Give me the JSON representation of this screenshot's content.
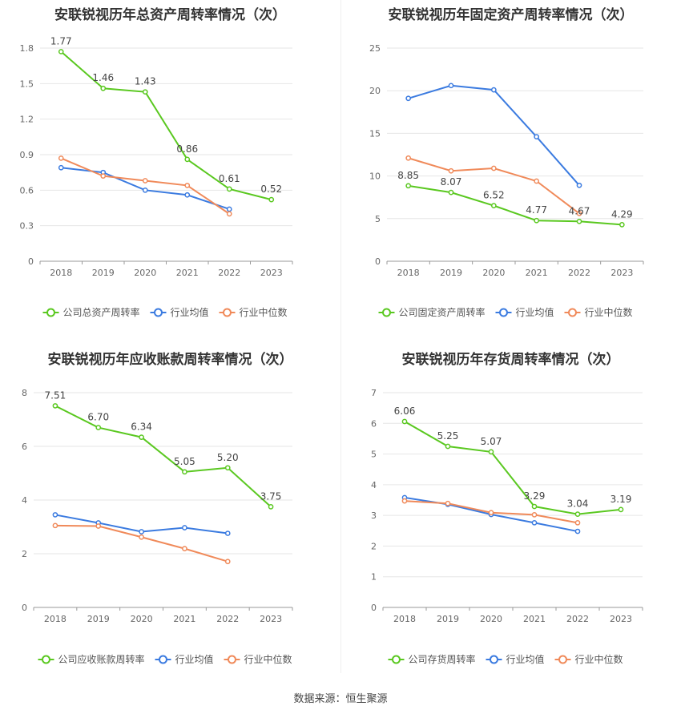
{
  "footer": "数据来源：恒生聚源",
  "colors": {
    "company": "#5ac820",
    "avg": "#3b7be0",
    "median": "#f08a5a"
  },
  "legend": {
    "avg": "行业均值",
    "median": "行业中位数"
  },
  "chart_data": [
    {
      "type": "line",
      "title": "安联锐视历年总资产周转率情况（次）",
      "categories": [
        "2018",
        "2019",
        "2020",
        "2021",
        "2022",
        "2023"
      ],
      "yticks": [
        "0",
        "0.3",
        "0.6",
        "0.9",
        "1.2",
        "1.5",
        "1.8"
      ],
      "ylim": [
        0,
        1.8
      ],
      "series": [
        {
          "name": "公司总资产周转率",
          "key": "company",
          "values": [
            1.77,
            1.46,
            1.43,
            0.86,
            0.61,
            0.52
          ],
          "labels": [
            "1.77",
            "1.46",
            "1.43",
            "0.86",
            "0.61",
            "0.52"
          ]
        },
        {
          "name": "行业均值",
          "key": "avg",
          "values": [
            0.79,
            0.75,
            0.6,
            0.56,
            0.44,
            null
          ]
        },
        {
          "name": "行业中位数",
          "key": "median",
          "values": [
            0.87,
            0.72,
            0.68,
            0.64,
            0.4,
            null
          ]
        }
      ]
    },
    {
      "type": "line",
      "title": "安联锐视历年固定资产周转率情况（次）",
      "categories": [
        "2018",
        "2019",
        "2020",
        "2021",
        "2022",
        "2023"
      ],
      "yticks": [
        "0",
        "5",
        "10",
        "15",
        "20",
        "25"
      ],
      "ylim": [
        0,
        25
      ],
      "series": [
        {
          "name": "公司固定资产周转率",
          "key": "company",
          "values": [
            8.85,
            8.07,
            6.52,
            4.77,
            4.67,
            4.29
          ],
          "labels": [
            "8.85",
            "8.07",
            "6.52",
            "4.77",
            "4.67",
            "4.29"
          ]
        },
        {
          "name": "行业均值",
          "key": "avg",
          "values": [
            19.1,
            20.6,
            20.1,
            14.6,
            8.9,
            null
          ]
        },
        {
          "name": "行业中位数",
          "key": "median",
          "values": [
            12.1,
            10.6,
            10.9,
            9.4,
            5.6,
            null
          ]
        }
      ]
    },
    {
      "type": "line",
      "title": "安联锐视历年应收账款周转率情况（次）",
      "categories": [
        "2018",
        "2019",
        "2020",
        "2021",
        "2022",
        "2023"
      ],
      "yticks": [
        "0",
        "2",
        "4",
        "6",
        "8"
      ],
      "ylim": [
        0,
        8
      ],
      "series": [
        {
          "name": "公司应收账款周转率",
          "key": "company",
          "values": [
            7.51,
            6.7,
            6.34,
            5.05,
            5.2,
            3.75
          ],
          "labels": [
            "7.51",
            "6.70",
            "6.34",
            "5.05",
            "5.20",
            "3.75"
          ]
        },
        {
          "name": "行业均值",
          "key": "avg",
          "values": [
            3.45,
            3.15,
            2.82,
            2.97,
            2.76,
            null
          ]
        },
        {
          "name": "行业中位数",
          "key": "median",
          "values": [
            3.05,
            3.03,
            2.62,
            2.19,
            1.71,
            null
          ]
        }
      ]
    },
    {
      "type": "line",
      "title": "安联锐视历年存货周转率情况（次）",
      "categories": [
        "2018",
        "2019",
        "2020",
        "2021",
        "2022",
        "2023"
      ],
      "yticks": [
        "0",
        "1",
        "2",
        "3",
        "4",
        "5",
        "6",
        "7"
      ],
      "ylim": [
        0,
        7
      ],
      "series": [
        {
          "name": "公司存货周转率",
          "key": "company",
          "values": [
            6.06,
            5.25,
            5.07,
            3.29,
            3.04,
            3.19
          ],
          "labels": [
            "6.06",
            "5.25",
            "5.07",
            "3.29",
            "3.04",
            "3.19"
          ]
        },
        {
          "name": "行业均值",
          "key": "avg",
          "values": [
            3.58,
            3.36,
            3.03,
            2.76,
            2.48,
            null
          ]
        },
        {
          "name": "行业中位数",
          "key": "median",
          "values": [
            3.47,
            3.39,
            3.09,
            3.02,
            2.76,
            null
          ]
        }
      ]
    }
  ]
}
